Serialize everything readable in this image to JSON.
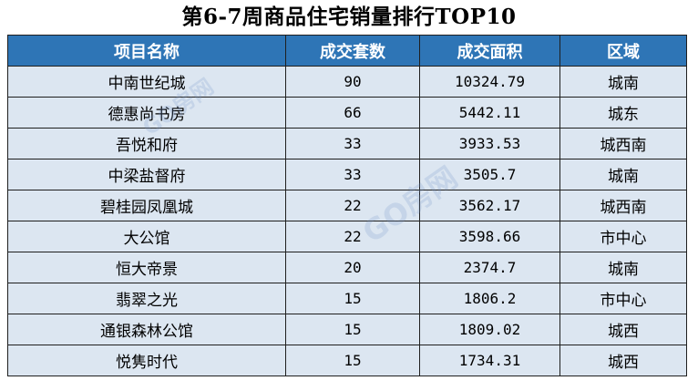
{
  "title": "第6-7周商品住宅销量排行TOP10",
  "table": {
    "headers": [
      "项目名称",
      "成交套数",
      "成交面积",
      "区域"
    ],
    "rows": [
      {
        "name": "中南世纪城",
        "units": "90",
        "area": "10324.79",
        "district": "城南"
      },
      {
        "name": "德惠尚书房",
        "units": "66",
        "area": "5442.11",
        "district": "城东"
      },
      {
        "name": "吾悦和府",
        "units": "33",
        "area": "3933.53",
        "district": "城西南"
      },
      {
        "name": "中梁盐督府",
        "units": "33",
        "area": "3505.7",
        "district": "城南"
      },
      {
        "name": "碧桂园凤凰城",
        "units": "22",
        "area": "3562.17",
        "district": "城西南"
      },
      {
        "name": "大公馆",
        "units": "22",
        "area": "3598.66",
        "district": "市中心"
      },
      {
        "name": "恒大帝景",
        "units": "20",
        "area": "2374.7",
        "district": "城南"
      },
      {
        "name": "翡翠之光",
        "units": "15",
        "area": "1806.2",
        "district": "市中心"
      },
      {
        "name": "通银森林公馆",
        "units": "15",
        "area": "1809.02",
        "district": "城西"
      },
      {
        "name": "悦隽时代",
        "units": "15",
        "area": "1734.31",
        "district": "城西"
      }
    ]
  },
  "watermark": {
    "text_small": "GO房网",
    "text_large": "GO房网"
  },
  "colors": {
    "header_bg": "#2e75b6",
    "row_bg": "#dce6f1",
    "border": "#1f1f1f"
  }
}
